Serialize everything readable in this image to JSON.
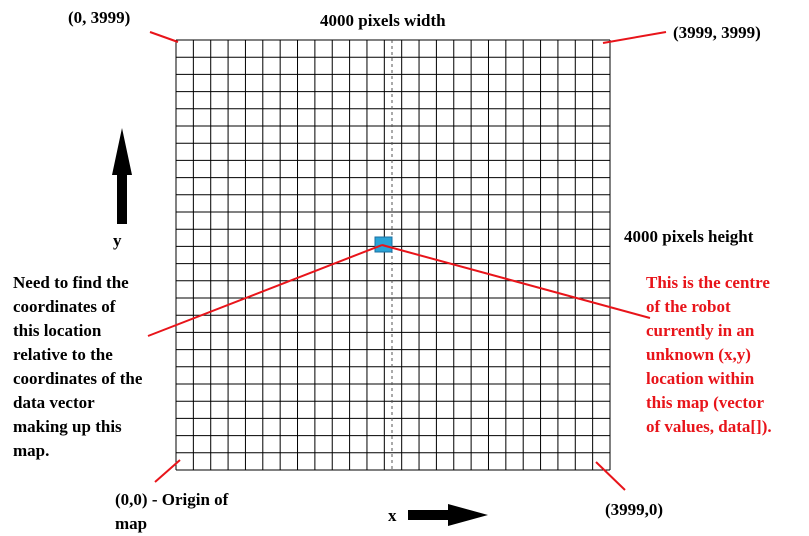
{
  "labels": {
    "top_left_corner": "(0, 3999)",
    "top_right_corner": "(3999, 3999)",
    "bottom_left_corner": "(0,0) - Origin of\nmap",
    "bottom_right_corner": "(3999,0)",
    "width_caption": "4000 pixels width",
    "height_caption": "4000 pixels height",
    "y_axis_label": "y",
    "x_axis_label": "x",
    "left_note": "Need to find the\ncoordinates of\nthis location\nrelative to the\ncoordinates of the\ndata vector\nmaking up this\nmap.",
    "right_note": "This is the centre\nof the robot\ncurrently in an\nunknown (x,y)\nlocation within\nthis map (vector\nof values, data[])."
  },
  "colors": {
    "ink": "#000000",
    "annotation_red": "#e8141a",
    "robot_cell": "#2aa3d6"
  },
  "grid": {
    "columns": 25,
    "rows": 25
  }
}
